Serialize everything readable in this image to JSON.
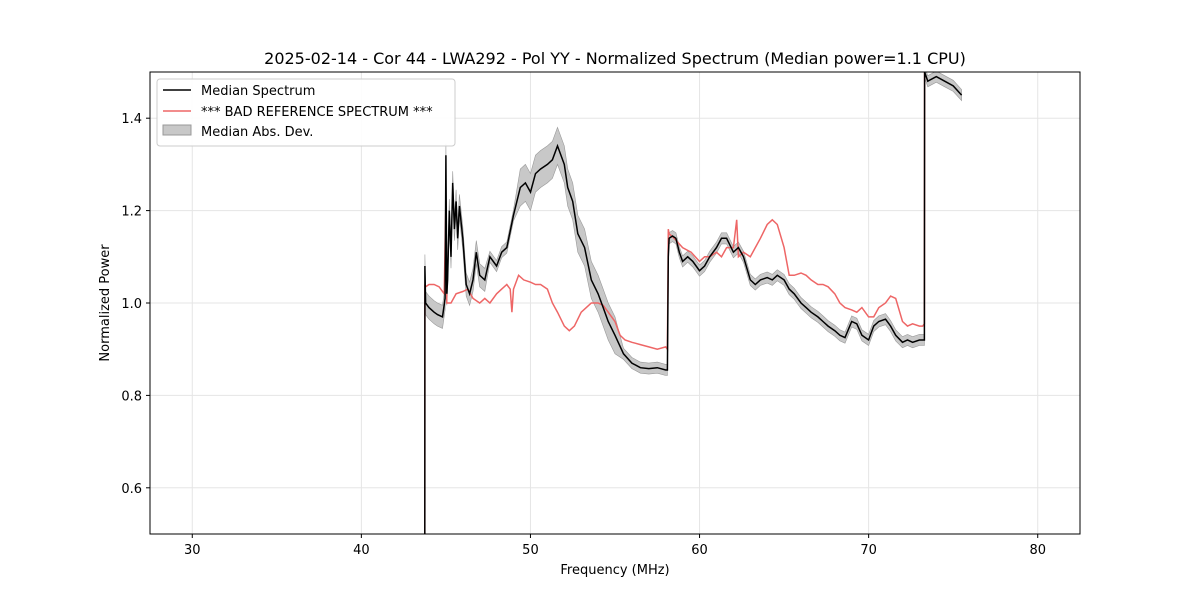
{
  "chart_data": {
    "type": "line",
    "title": "2025-02-14 - Cor 44 - LWA292 - Pol YY - Normalized Spectrum (Median power=1.1 CPU)",
    "xlabel": "Frequency (MHz)",
    "ylabel": "Normalized Power",
    "xlim": [
      27.5,
      82.5
    ],
    "ylim": [
      0.5,
      1.5
    ],
    "xticks": [
      30,
      40,
      50,
      60,
      70,
      80
    ],
    "yticks": [
      0.6,
      0.8,
      1.0,
      1.2,
      1.4
    ],
    "xtick_labels": [
      "30",
      "40",
      "50",
      "60",
      "70",
      "80"
    ],
    "ytick_labels": [
      "0.6",
      "0.8",
      "1.0",
      "1.2",
      "1.4"
    ],
    "grid": true,
    "legend": {
      "position": "top-left",
      "entries": [
        "Median Spectrum",
        "*** BAD REFERENCE SPECTRUM ***",
        "Median Abs. Dev."
      ]
    },
    "colors": {
      "median": "#000000",
      "reference": "#ee6666",
      "mad_fill": "#c8c8c8",
      "mad_edge": "#999999",
      "grid": "#e5e5e5"
    },
    "series": [
      {
        "name": "Median Spectrum",
        "x": [
          43.75,
          43.76,
          43.8,
          43.9,
          44.0,
          44.3,
          44.5,
          44.8,
          44.95,
          45.0,
          45.05,
          45.1,
          45.2,
          45.3,
          45.4,
          45.5,
          45.6,
          45.7,
          45.8,
          46.0,
          46.2,
          46.4,
          46.6,
          46.8,
          47.0,
          47.3,
          47.6,
          48.0,
          48.3,
          48.6,
          49.0,
          49.4,
          49.7,
          50.0,
          50.3,
          50.6,
          51.0,
          51.3,
          51.6,
          52.0,
          52.2,
          52.5,
          52.8,
          53.2,
          53.6,
          54.0,
          54.3,
          54.6,
          55.0,
          55.5,
          56.0,
          56.5,
          57.0,
          57.5,
          58.0,
          58.1,
          58.15,
          58.2,
          58.4,
          58.6,
          58.8,
          59.0,
          59.3,
          59.6,
          60.0,
          60.3,
          60.6,
          61.0,
          61.3,
          61.6,
          62.0,
          62.3,
          62.6,
          63.0,
          63.3,
          63.6,
          64.0,
          64.3,
          64.6,
          65.0,
          65.3,
          65.6,
          66.0,
          66.3,
          66.6,
          67.0,
          67.3,
          67.6,
          68.0,
          68.3,
          68.6,
          69.0,
          69.3,
          69.6,
          70.0,
          70.3,
          70.6,
          71.0,
          71.3,
          71.6,
          72.0,
          72.3,
          72.6,
          73.0,
          73.2,
          73.3,
          73.31,
          73.5,
          74.0,
          74.5,
          75.0,
          75.5
        ],
        "y": [
          0.5,
          1.08,
          1.0,
          0.995,
          0.99,
          0.98,
          0.975,
          0.97,
          1.01,
          1.32,
          1.02,
          1.05,
          1.2,
          1.1,
          1.26,
          1.16,
          1.22,
          1.14,
          1.21,
          1.14,
          1.04,
          1.02,
          1.05,
          1.11,
          1.06,
          1.05,
          1.1,
          1.08,
          1.11,
          1.12,
          1.19,
          1.25,
          1.26,
          1.24,
          1.28,
          1.29,
          1.3,
          1.31,
          1.34,
          1.3,
          1.25,
          1.22,
          1.15,
          1.12,
          1.05,
          1.02,
          0.99,
          0.96,
          0.93,
          0.89,
          0.87,
          0.86,
          0.858,
          0.86,
          0.855,
          0.855,
          1.1,
          1.14,
          1.145,
          1.14,
          1.11,
          1.09,
          1.1,
          1.09,
          1.07,
          1.08,
          1.1,
          1.12,
          1.14,
          1.14,
          1.11,
          1.12,
          1.1,
          1.05,
          1.04,
          1.05,
          1.055,
          1.05,
          1.06,
          1.05,
          1.03,
          1.02,
          1.0,
          0.99,
          0.98,
          0.97,
          0.96,
          0.95,
          0.94,
          0.93,
          0.925,
          0.96,
          0.955,
          0.93,
          0.92,
          0.95,
          0.96,
          0.965,
          0.95,
          0.93,
          0.915,
          0.92,
          0.915,
          0.92,
          0.92,
          0.92,
          1.5,
          1.48,
          1.49,
          1.48,
          1.47,
          1.45
        ]
      },
      {
        "name": "*** BAD REFERENCE SPECTRUM ***",
        "x": [
          43.75,
          43.76,
          43.8,
          44.0,
          44.3,
          44.6,
          44.9,
          45.0,
          45.05,
          45.1,
          45.3,
          45.6,
          46.0,
          46.3,
          46.6,
          47.0,
          47.3,
          47.6,
          48.0,
          48.3,
          48.6,
          48.8,
          48.9,
          49.0,
          49.3,
          49.6,
          50.0,
          50.3,
          50.6,
          51.0,
          51.3,
          51.6,
          52.0,
          52.3,
          52.6,
          53.0,
          53.3,
          53.6,
          54.0,
          54.3,
          54.6,
          55.0,
          55.3,
          55.6,
          56.0,
          56.5,
          57.0,
          57.5,
          58.0,
          58.1,
          58.15,
          58.2,
          58.5,
          59.0,
          59.5,
          60.0,
          60.3,
          60.6,
          61.0,
          61.3,
          61.6,
          62.0,
          62.2,
          62.3,
          62.6,
          63.0,
          63.3,
          63.6,
          64.0,
          64.3,
          64.6,
          65.0,
          65.3,
          65.6,
          66.0,
          66.3,
          66.6,
          67.0,
          67.3,
          67.6,
          68.0,
          68.3,
          68.6,
          69.0,
          69.3,
          69.6,
          70.0,
          70.3,
          70.6,
          71.0,
          71.3,
          71.6,
          72.0,
          72.3,
          72.6,
          73.0,
          73.2,
          73.3,
          73.31
        ],
        "y": [
          0.5,
          1.04,
          1.035,
          1.04,
          1.04,
          1.035,
          1.02,
          1.22,
          1.0,
          1.0,
          1.0,
          1.02,
          1.025,
          1.03,
          1.01,
          1.0,
          1.01,
          1.0,
          1.02,
          1.03,
          1.04,
          1.03,
          0.98,
          1.03,
          1.06,
          1.05,
          1.045,
          1.04,
          1.04,
          1.03,
          1.0,
          0.98,
          0.95,
          0.94,
          0.95,
          0.98,
          0.99,
          1.0,
          1.0,
          0.995,
          0.98,
          0.96,
          0.93,
          0.92,
          0.915,
          0.91,
          0.905,
          0.9,
          0.905,
          0.9,
          1.16,
          1.15,
          1.14,
          1.12,
          1.11,
          1.09,
          1.1,
          1.1,
          1.11,
          1.1,
          1.12,
          1.12,
          1.18,
          1.1,
          1.11,
          1.1,
          1.12,
          1.14,
          1.17,
          1.18,
          1.17,
          1.12,
          1.06,
          1.06,
          1.065,
          1.06,
          1.05,
          1.04,
          1.04,
          1.035,
          1.02,
          1.0,
          0.99,
          0.985,
          0.98,
          0.99,
          0.97,
          0.97,
          0.99,
          1.0,
          1.015,
          1.01,
          0.96,
          0.95,
          0.955,
          0.95,
          0.95,
          0.955,
          1.5
        ]
      }
    ]
  }
}
